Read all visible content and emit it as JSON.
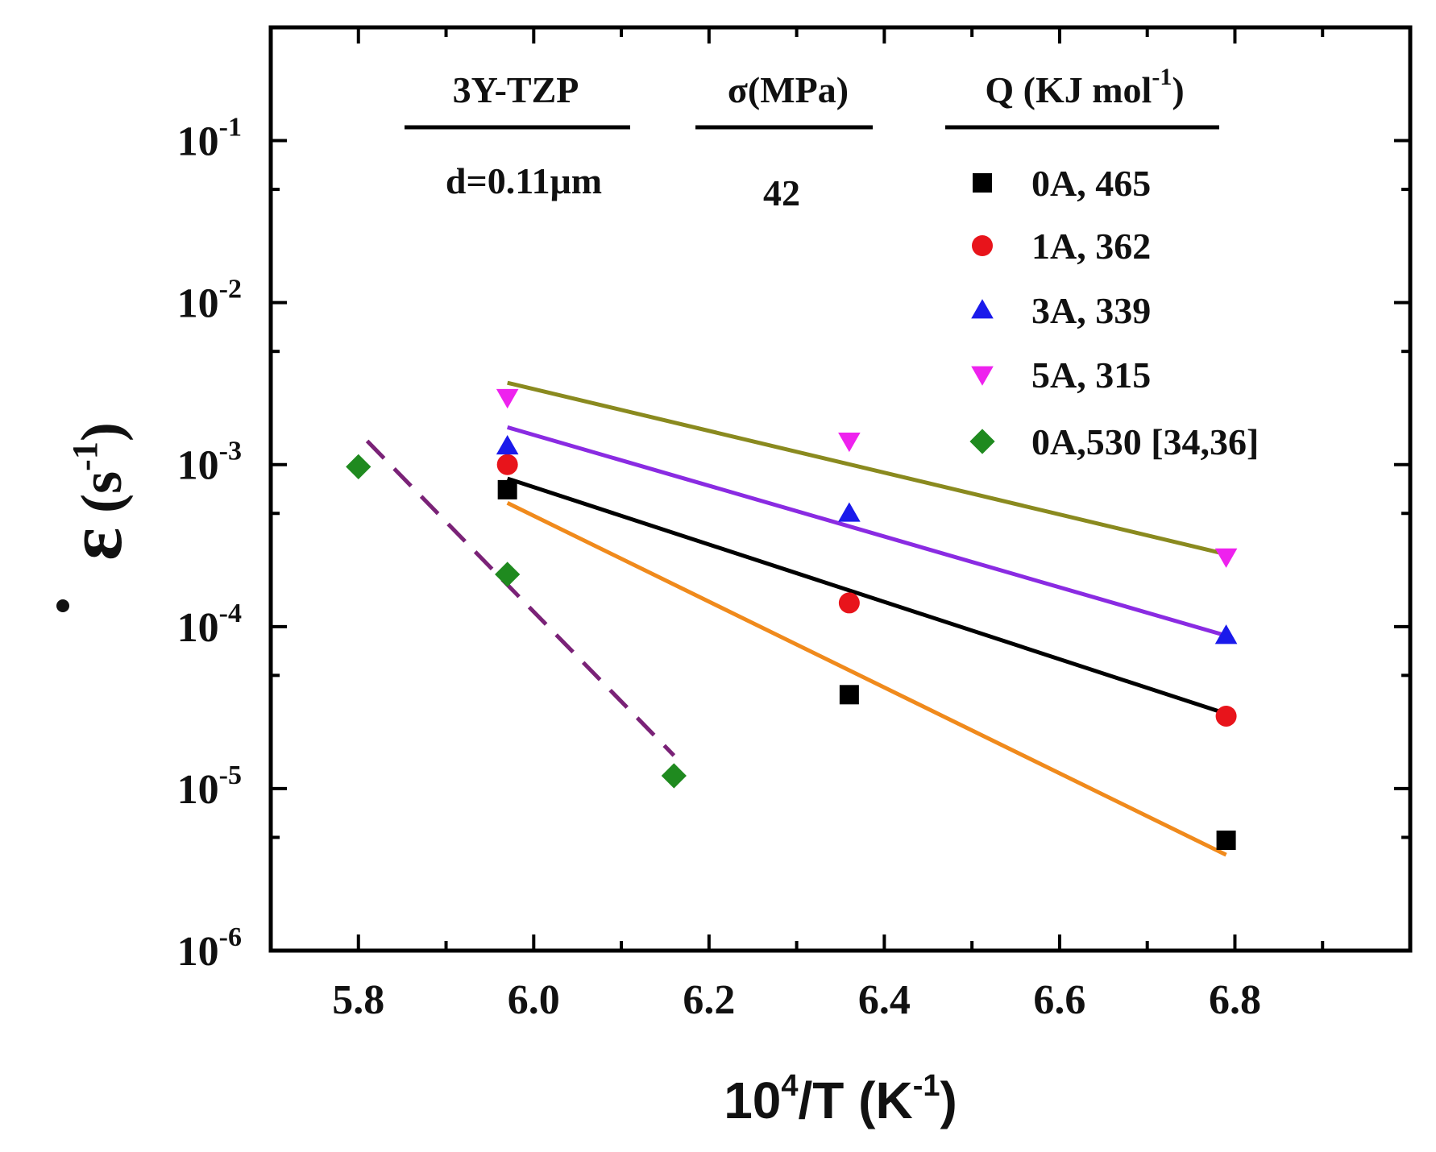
{
  "chart_data": {
    "type": "scatter",
    "xlabel": {
      "base": "10",
      "sup": "4",
      "mid": "/T (K",
      "sup2": "-1",
      "end": ")"
    },
    "ylabel": {
      "symbol": "ε",
      "pre": "(s",
      "sup": "-1",
      "end": ")"
    },
    "xlim": [
      5.7,
      7.0
    ],
    "ylim": [
      1e-06,
      0.5
    ],
    "yscale": "log",
    "x_ticks": [
      "5.8",
      "6.0",
      "6.2",
      "6.4",
      "6.6",
      "6.8"
    ],
    "y_ticks": [
      {
        "base": "10",
        "exp": "-6",
        "value": 1e-06
      },
      {
        "base": "10",
        "exp": "-5",
        "value": 1e-05
      },
      {
        "base": "10",
        "exp": "-4",
        "value": 0.0001
      },
      {
        "base": "10",
        "exp": "-3",
        "value": 0.001
      },
      {
        "base": "10",
        "exp": "-2",
        "value": 0.01
      },
      {
        "base": "10",
        "exp": "-1",
        "value": 0.1
      }
    ],
    "header": {
      "material": "3Y-TZP",
      "grain_size": "d=0.11μm",
      "stress_head": "σ(MPa)",
      "stress_value": "42",
      "q_head": {
        "main": "Q (KJ mol",
        "sup": "-1",
        "end": ")"
      }
    },
    "legend_placement": "top-right",
    "grid": false,
    "series": [
      {
        "name": "0A, 465",
        "marker": "square",
        "color": "#000000",
        "x": [
          5.97,
          6.36,
          6.79
        ],
        "y": [
          0.0007,
          3.8e-05,
          4.8e-06
        ]
      },
      {
        "name": "1A, 362",
        "marker": "circle",
        "color": "#e8141b",
        "x": [
          5.97,
          6.36,
          6.79
        ],
        "y": [
          0.001,
          0.00014,
          2.8e-05
        ]
      },
      {
        "name": "3A, 339",
        "marker": "triangle-up",
        "color": "#1a1aeb",
        "x": [
          5.97,
          6.36,
          6.79
        ],
        "y": [
          0.0013,
          0.0005,
          8.8e-05
        ]
      },
      {
        "name": "5A, 315",
        "marker": "triangle-down",
        "color": "#ee22ee",
        "x": [
          5.97,
          6.36,
          6.79
        ],
        "y": [
          0.0026,
          0.0014,
          0.00027
        ]
      },
      {
        "name": "0A,530 [34,36]",
        "marker": "diamond",
        "color": "#1f8a1f",
        "x": [
          5.8,
          5.97,
          6.16
        ],
        "y": [
          0.00097,
          0.00021,
          1.2e-05
        ]
      }
    ],
    "fit_lines": [
      {
        "color": "#8a8a1f",
        "dash": false,
        "x": [
          5.97,
          6.79
        ],
        "y": [
          0.0032,
          0.00028
        ]
      },
      {
        "color": "#8a2be2",
        "dash": false,
        "x": [
          5.97,
          6.79
        ],
        "y": [
          0.0017,
          8.8e-05
        ]
      },
      {
        "color": "#000000",
        "dash": false,
        "x": [
          5.97,
          6.79
        ],
        "y": [
          0.00082,
          2.9e-05
        ]
      },
      {
        "color": "#f08a1c",
        "dash": false,
        "x": [
          5.97,
          6.79
        ],
        "y": [
          0.00058,
          3.9e-06
        ]
      },
      {
        "color": "#7a2277",
        "dash": true,
        "x": [
          5.81,
          6.16
        ],
        "y": [
          0.0014,
          1.6e-05
        ]
      }
    ]
  }
}
